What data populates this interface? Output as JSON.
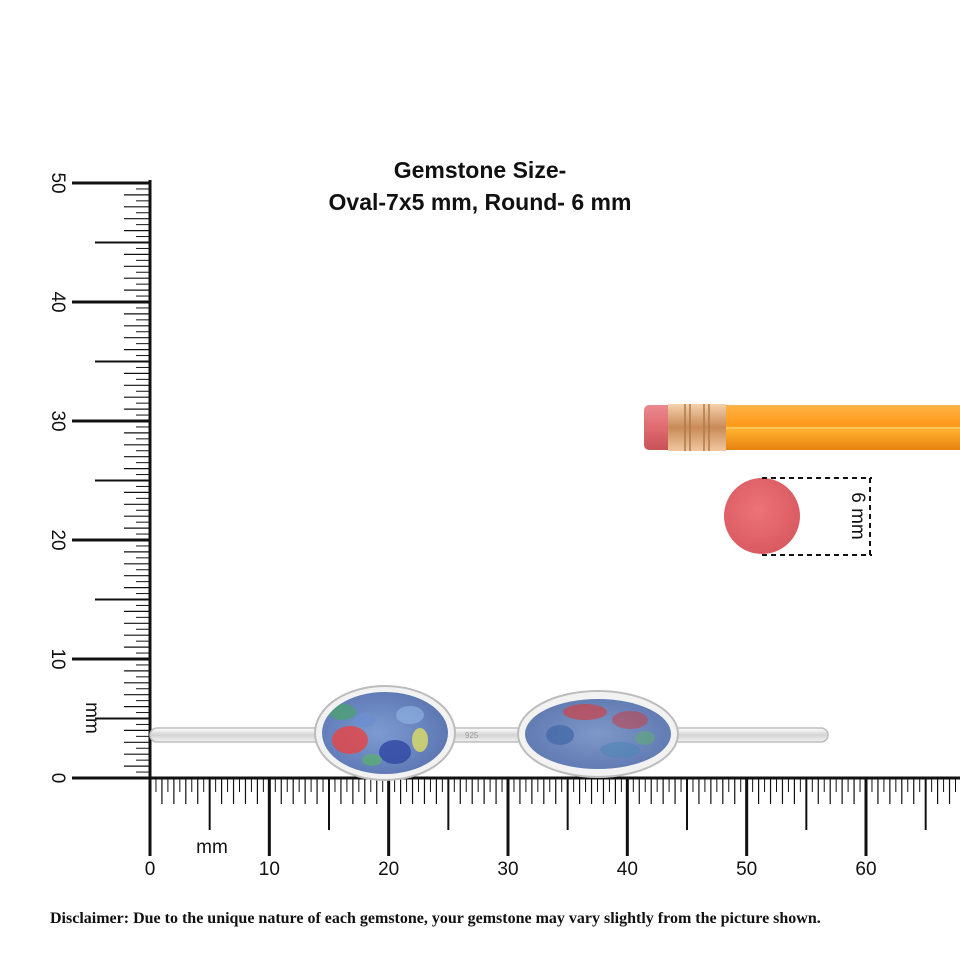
{
  "title": {
    "line1": "Gemstone Size-",
    "line2": "Oval-7x5 mm, Round- 6 mm"
  },
  "vertical_ruler": {
    "unit": "mm",
    "labels": [
      "0",
      "10",
      "20",
      "30",
      "40",
      "50"
    ]
  },
  "horizontal_ruler": {
    "unit": "mm",
    "labels": [
      "0",
      "10",
      "20",
      "30",
      "40",
      "50",
      "60"
    ]
  },
  "eraser_dimension": {
    "label": "6 mm"
  },
  "product": {
    "type": "cuff bangle",
    "stones": [
      "oval opal",
      "oval opal"
    ],
    "metal_color": "#e6e6e6",
    "opal_colors": [
      "#6e8fc8",
      "#3b55a8",
      "#e2484a",
      "#5bb06a",
      "#d8d86a"
    ]
  },
  "pencil": {
    "body_color": "#ff9a1a",
    "ferrule_color": "#d9a06a",
    "eraser_color": "#e4686e"
  },
  "disclaimer": "Disclaimer: Due to the unique nature of each gemstone, your gemstone may vary slightly from the picture shown."
}
